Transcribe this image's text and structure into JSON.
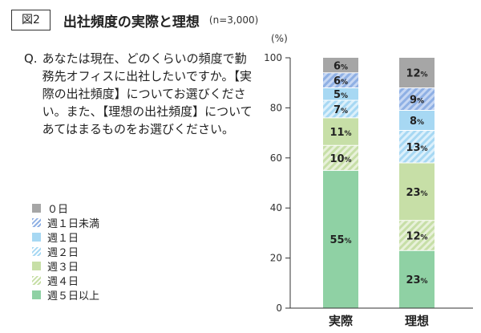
{
  "header": {
    "fig_label": "図2",
    "title": "出社頻度の実際と理想",
    "note": "(n=3,000)"
  },
  "question": {
    "prefix": "Q.",
    "text": "あなたは現在、どのくらいの頻度で勤務先オフィスに出社したいですか。【実際の出社頻度】についてお選びください。また、【理想の出社頻度】についてあてはまるものをお選びください。"
  },
  "legend": [
    {
      "label": "０日",
      "color": "#a6a6a6",
      "hatch": false
    },
    {
      "label": "週１日未満",
      "color": "#8fb0e4",
      "hatch": true
    },
    {
      "label": "週１日",
      "color": "#a7d8f3",
      "hatch": false
    },
    {
      "label": "週２日",
      "color": "#a7d8f3",
      "hatch": true
    },
    {
      "label": "週３日",
      "color": "#c7dfa7",
      "hatch": false
    },
    {
      "label": "週４日",
      "color": "#c7dfa7",
      "hatch": true
    },
    {
      "label": "週５日以上",
      "color": "#8fd1a4",
      "hatch": false
    }
  ],
  "chart_data": {
    "type": "bar",
    "stacked": true,
    "unit_label": "(%)",
    "yticks": [
      0,
      20,
      40,
      60,
      80,
      100
    ],
    "ylim": [
      0,
      100
    ],
    "categories": [
      "実際",
      "理想"
    ],
    "series": [
      {
        "name": "週５日以上",
        "values": [
          55,
          23
        ]
      },
      {
        "name": "週４日",
        "values": [
          10,
          12
        ]
      },
      {
        "name": "週３日",
        "values": [
          11,
          23
        ]
      },
      {
        "name": "週２日",
        "values": [
          7,
          13
        ]
      },
      {
        "name": "週１日",
        "values": [
          5,
          8
        ]
      },
      {
        "name": "週１日未満",
        "values": [
          6,
          9
        ]
      },
      {
        "name": "０日",
        "values": [
          6,
          12
        ]
      }
    ],
    "value_suffix": "%"
  }
}
